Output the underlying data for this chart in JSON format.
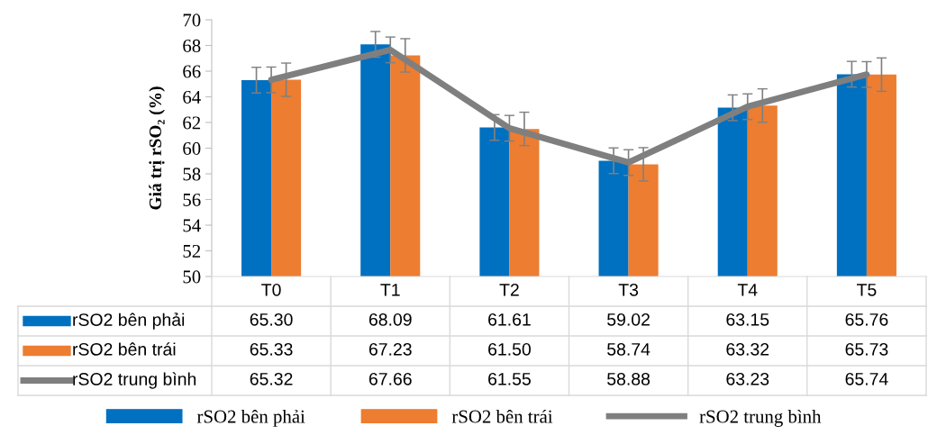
{
  "chart_data": {
    "type": "bar",
    "ylabel": "Giá trị rSO₂ (%)",
    "categories": [
      "T0",
      "T1",
      "T2",
      "T3",
      "T4",
      "T5"
    ],
    "series": [
      {
        "name": "rSO2 bên phải",
        "color": "#0070c0",
        "values": [
          65.3,
          68.09,
          61.61,
          59.02,
          63.15,
          65.76
        ],
        "errors": [
          1.0,
          1.0,
          1.0,
          1.0,
          1.0,
          1.0
        ],
        "value_labels": [
          "65.30",
          "68.09",
          "61.61",
          "59.02",
          "63.15",
          "65.76"
        ]
      },
      {
        "name": "rSO2 bên trái",
        "color": "#ed7d31",
        "values": [
          65.33,
          67.23,
          61.5,
          58.74,
          63.32,
          65.73
        ],
        "errors": [
          1.3,
          1.3,
          1.3,
          1.3,
          1.3,
          1.3
        ],
        "value_labels": [
          "65.33",
          "67.23",
          "61.50",
          "58.74",
          "63.32",
          "65.73"
        ]
      },
      {
        "name": "rSO2 trung bình",
        "type": "line",
        "color": "#7f7f7f",
        "values": [
          65.32,
          67.66,
          61.55,
          58.88,
          63.23,
          65.74
        ],
        "errors": [
          1.0,
          1.0,
          1.0,
          1.0,
          1.0,
          1.0
        ],
        "value_labels": [
          "65.32",
          "67.66",
          "61.55",
          "58.88",
          "63.23",
          "65.74"
        ]
      }
    ],
    "ylim": [
      50,
      70
    ],
    "yticks": [
      50,
      52,
      54,
      56,
      58,
      60,
      62,
      64,
      66,
      68,
      70
    ],
    "grid": false,
    "legend": "bottom",
    "marker": "none",
    "line_style": "solid"
  }
}
